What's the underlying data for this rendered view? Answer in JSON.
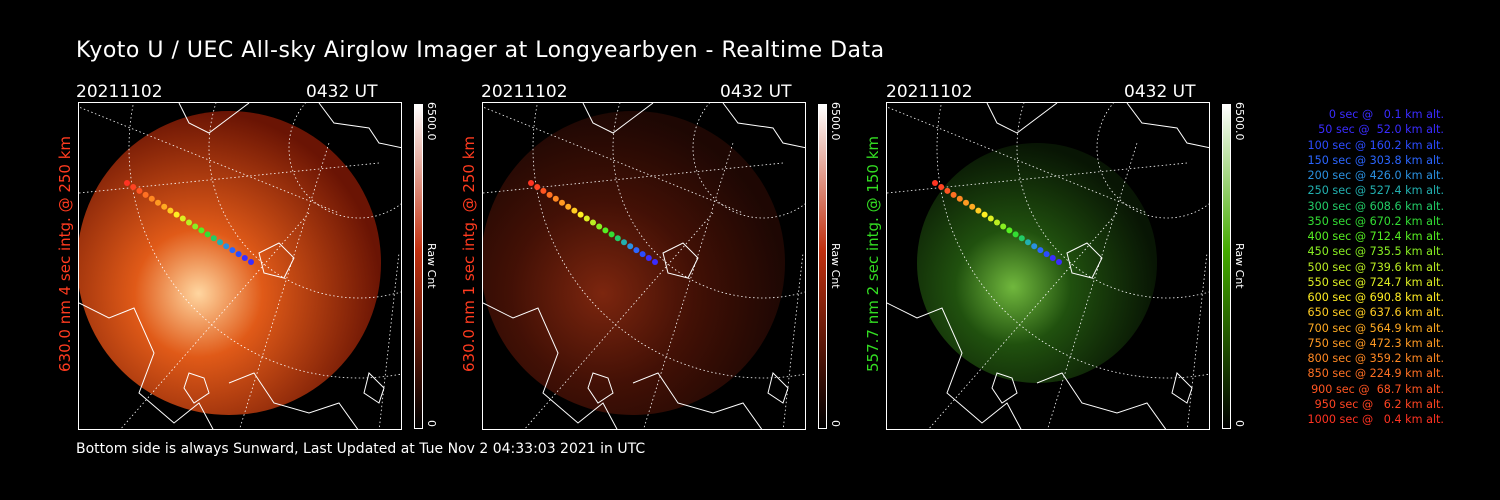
{
  "header": {
    "title": "Kyoto U / UEC All-sky Airglow Imager at Longyearbyen - Realtime Data"
  },
  "panels": [
    {
      "date": "20211102",
      "ut": "0432 UT",
      "sidelabel": "630.0 nm 4 sec intg. @ 250 km",
      "sidecolor": "#ff3b1f",
      "cbar": {
        "max": "6500.0",
        "min": "0",
        "unit": "Raw Cnt",
        "top": "#ffffff",
        "mid": "#c03010",
        "bottom": "#000000"
      }
    },
    {
      "date": "20211102",
      "ut": "0432 UT",
      "sidelabel": "630.0 nm 1 sec intg. @ 250 km",
      "sidecolor": "#ff3b1f",
      "cbar": {
        "max": "6500.0",
        "min": "0",
        "unit": "Raw Cnt",
        "top": "#ffffff",
        "mid": "#c03010",
        "bottom": "#000000"
      }
    },
    {
      "date": "20211102",
      "ut": "0432 UT",
      "sidelabel": "557.7 nm 2 sec intg. @ 150 km",
      "sidecolor": "#33dd22",
      "cbar": {
        "max": "6500.0",
        "min": "0",
        "unit": "Raw Cnt",
        "top": "#ffffff",
        "mid": "#44aa00",
        "bottom": "#000000"
      }
    }
  ],
  "legend": [
    {
      "text": "0 sec @   0.1 km alt.",
      "color": "#3a2cff"
    },
    {
      "text": "50 sec @  52.0 km alt.",
      "color": "#3a2cff"
    },
    {
      "text": "100 sec @ 160.2 km alt.",
      "color": "#2b4cff"
    },
    {
      "text": "150 sec @ 303.8 km alt.",
      "color": "#2b66ff"
    },
    {
      "text": "200 sec @ 426.0 km alt.",
      "color": "#2a90e0"
    },
    {
      "text": "250 sec @ 527.4 km alt.",
      "color": "#22b0b0"
    },
    {
      "text": "300 sec @ 608.6 km alt.",
      "color": "#22cc66"
    },
    {
      "text": "350 sec @ 670.2 km alt.",
      "color": "#33dd33"
    },
    {
      "text": "400 sec @ 712.4 km alt.",
      "color": "#55ee22"
    },
    {
      "text": "450 sec @ 735.5 km alt.",
      "color": "#88ee22"
    },
    {
      "text": "500 sec @ 739.6 km alt.",
      "color": "#bbee22"
    },
    {
      "text": "550 sec @ 724.7 km alt.",
      "color": "#ddee22"
    },
    {
      "text": "600 sec @ 690.8 km alt.",
      "color": "#ffee22"
    },
    {
      "text": "650 sec @ 637.6 km alt.",
      "color": "#ffcc22"
    },
    {
      "text": "700 sec @ 564.9 km alt.",
      "color": "#ffaa22"
    },
    {
      "text": "750 sec @ 472.3 km alt.",
      "color": "#ff9922"
    },
    {
      "text": "800 sec @ 359.2 km alt.",
      "color": "#ff8822"
    },
    {
      "text": "850 sec @ 224.9 km alt.",
      "color": "#ff7022"
    },
    {
      "text": "900 sec @  68.7 km alt.",
      "color": "#ff5522"
    },
    {
      "text": "950 sec @   6.2 km alt.",
      "color": "#ff4422"
    },
    {
      "text": "1000 sec @   0.4 km alt.",
      "color": "#ff3322"
    }
  ],
  "footer": {
    "text": "Bottom side is always Sunward, Last Updated at Tue Nov  2 04:33:03 2021 in UTC"
  }
}
